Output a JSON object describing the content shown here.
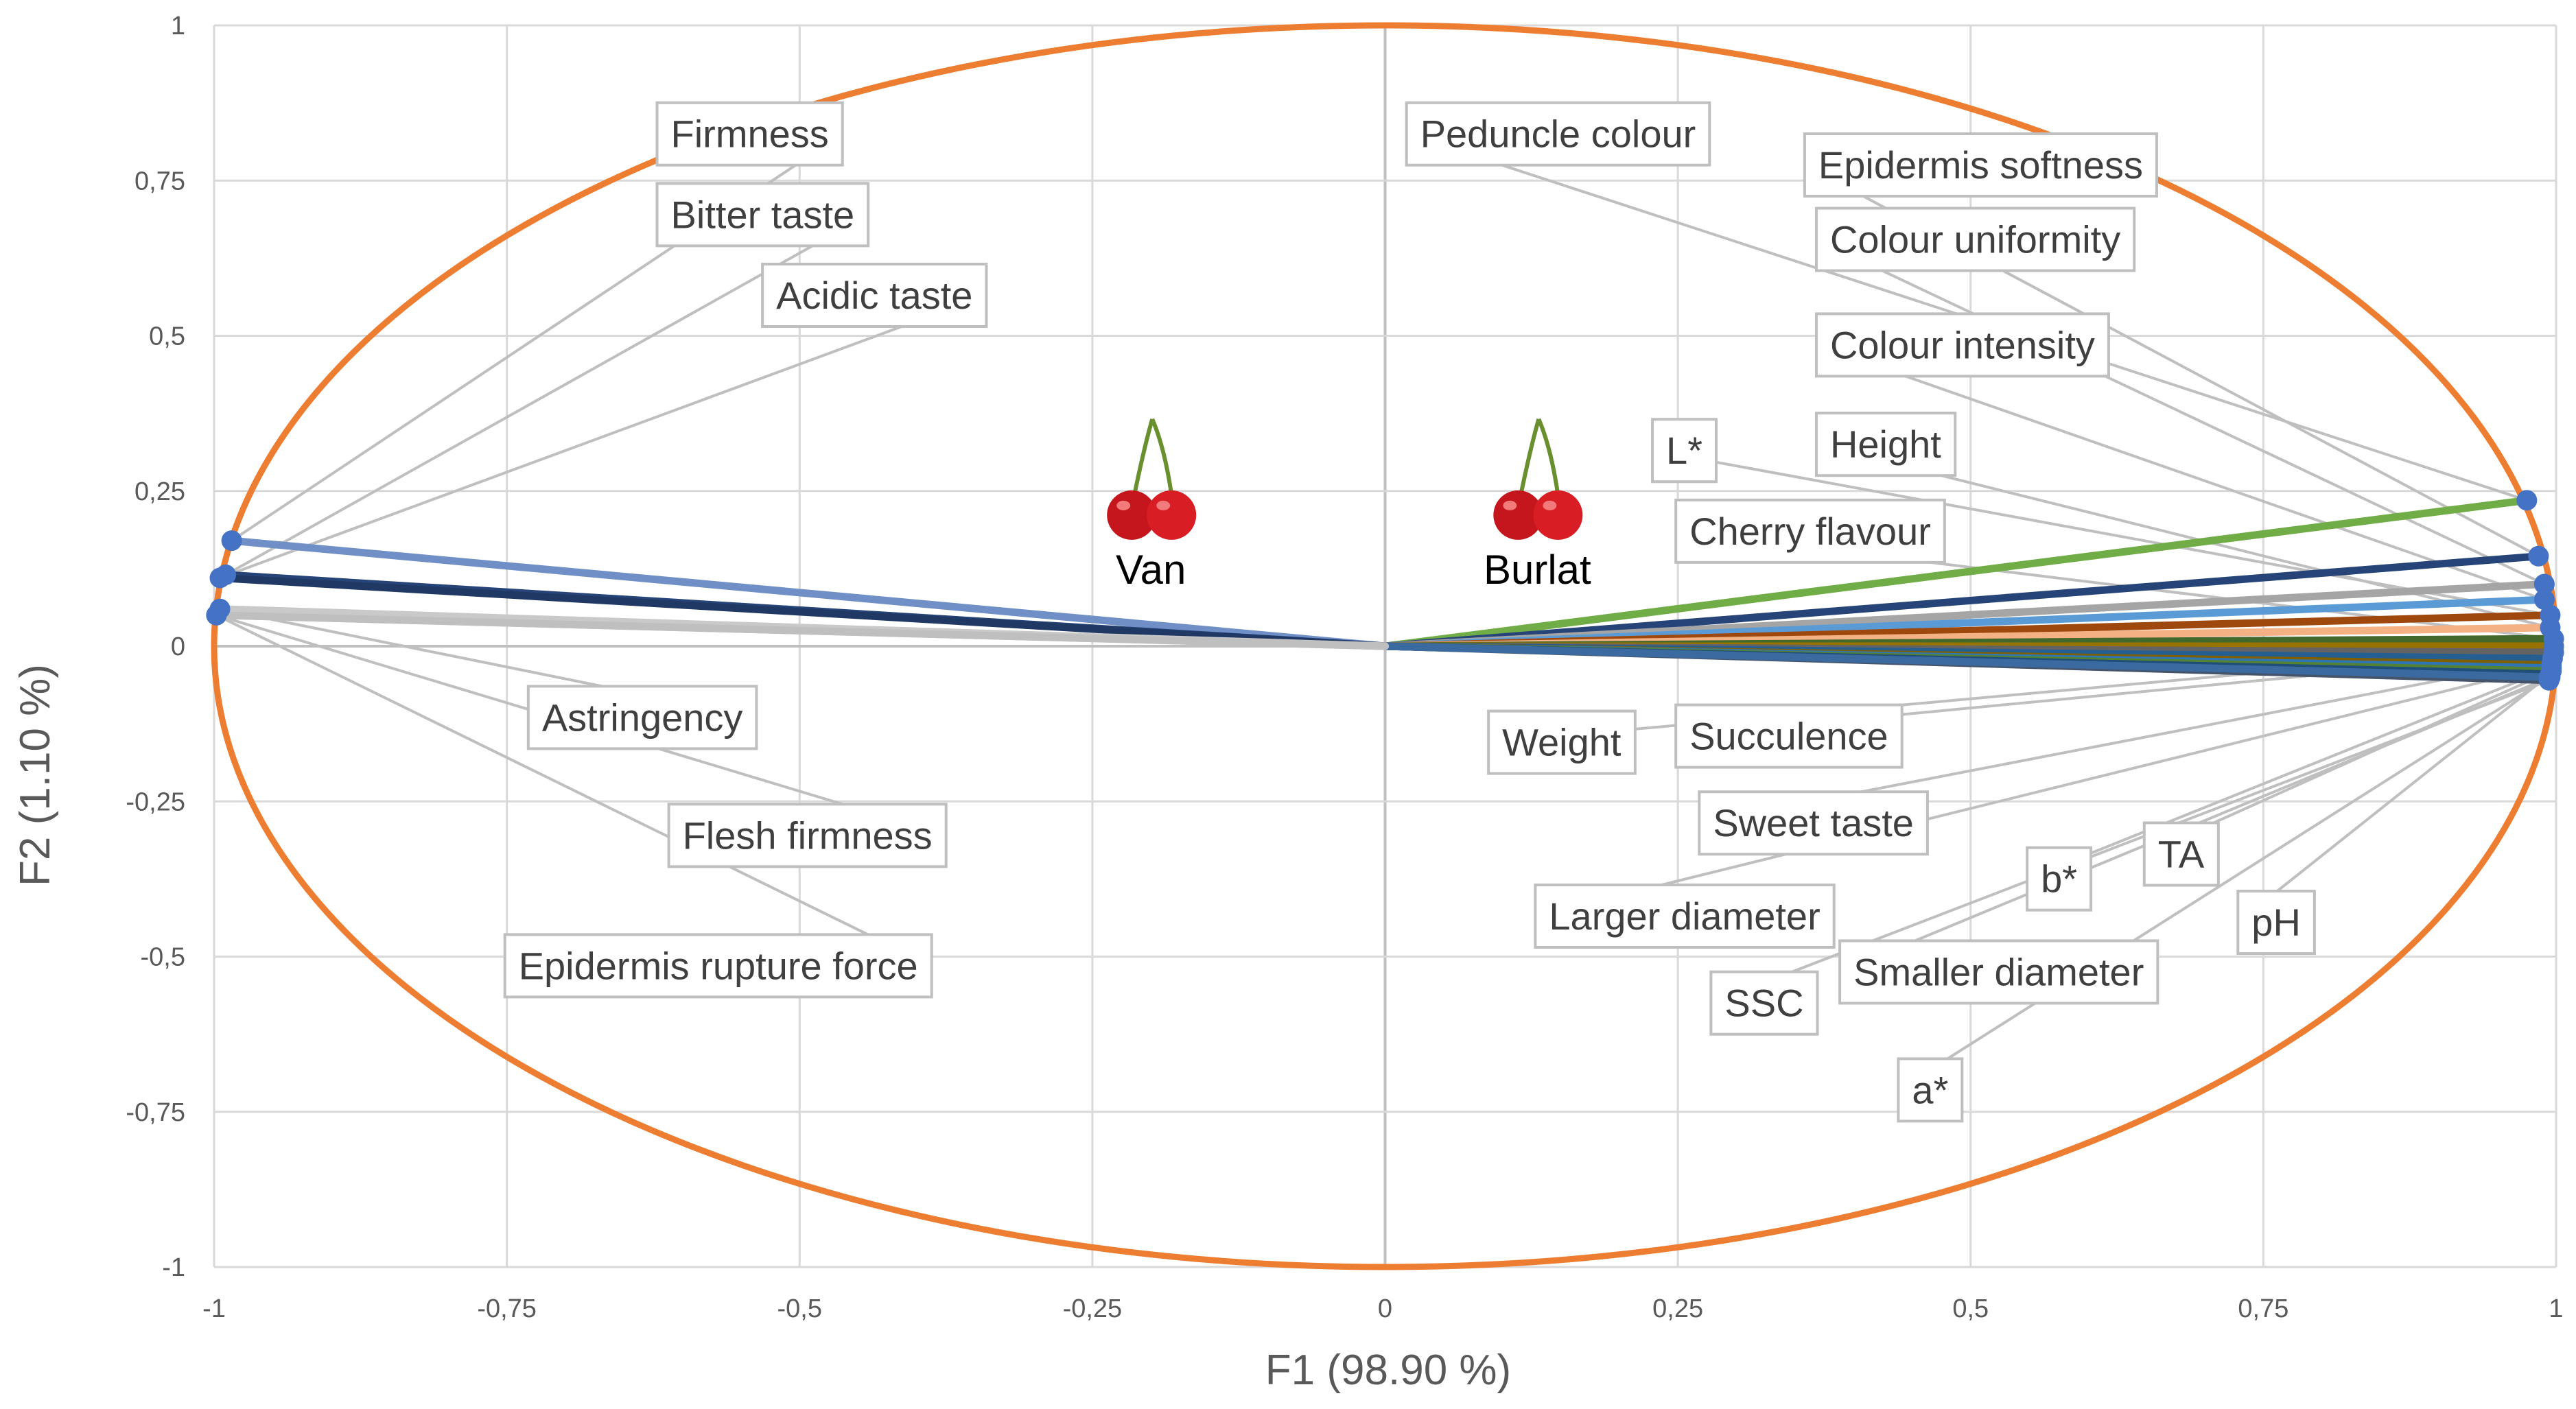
{
  "chart_data": {
    "type": "scatter",
    "subtype": "pca-correlation-circle",
    "xlabel": "F1 (98.90 %)",
    "ylabel": "F2 (1.10 %)",
    "xlim": [
      -1,
      1
    ],
    "ylim": [
      -1,
      1
    ],
    "xticks": [
      "-1",
      "-0,75",
      "-0,5",
      "-0,25",
      "0",
      "0,25",
      "0,5",
      "0,75",
      "1"
    ],
    "yticks": [
      "1",
      "0,75",
      "0,5",
      "0,25",
      "0",
      "-0,25",
      "-0,5",
      "-0,75",
      "-1"
    ],
    "grid": true,
    "circle_color": "#ed7d31",
    "observations": [
      {
        "name": "Van",
        "x": -0.2,
        "y": 0.22
      },
      {
        "name": "Burlat",
        "x": 0.13,
        "y": 0.22
      }
    ],
    "variables": [
      {
        "name": "Peduncle colour",
        "x": 0.975,
        "y": 0.235,
        "color": "#70ad47",
        "label_x": 0.03,
        "label_y": 0.82
      },
      {
        "name": "Epidermis softness",
        "x": 0.985,
        "y": 0.145,
        "color": "#264478",
        "label_x": 0.37,
        "label_y": 0.77
      },
      {
        "name": "Colour uniformity",
        "x": 0.99,
        "y": 0.1,
        "color": "#a5a5a5",
        "label_x": 0.38,
        "label_y": 0.65
      },
      {
        "name": "Colour intensity",
        "x": 0.99,
        "y": 0.075,
        "color": "#5b9bd5",
        "label_x": 0.38,
        "label_y": 0.48
      },
      {
        "name": "L*",
        "x": 0.995,
        "y": 0.05,
        "color": "#9e480e",
        "label_x": 0.24,
        "label_y": 0.31
      },
      {
        "name": "Height",
        "x": 0.995,
        "y": 0.03,
        "color": "#f4b183",
        "label_x": 0.38,
        "label_y": 0.32
      },
      {
        "name": "Cherry flavour",
        "x": 0.998,
        "y": 0.012,
        "color": "#43682b",
        "label_x": 0.26,
        "label_y": 0.18
      },
      {
        "name": "Weight",
        "x": 0.998,
        "y": 0.0,
        "color": "#997300",
        "label_x": 0.1,
        "label_y": -0.16
      },
      {
        "name": "Succulence",
        "x": 0.998,
        "y": -0.01,
        "color": "#636363",
        "label_x": 0.26,
        "label_y": -0.15
      },
      {
        "name": "Sweet taste",
        "x": 0.997,
        "y": -0.02,
        "color": "#255e91",
        "label_x": 0.28,
        "label_y": -0.29
      },
      {
        "name": "Larger diameter",
        "x": 0.996,
        "y": -0.03,
        "color": "#7f6000",
        "label_x": 0.14,
        "label_y": -0.44
      },
      {
        "name": "b*",
        "x": 0.996,
        "y": -0.035,
        "color": "#2e75b6",
        "label_x": 0.56,
        "label_y": -0.38
      },
      {
        "name": "TA",
        "x": 0.996,
        "y": -0.04,
        "color": "#548235",
        "label_x": 0.66,
        "label_y": -0.34
      },
      {
        "name": "pH",
        "x": 0.995,
        "y": -0.045,
        "color": "#1f4e79",
        "label_x": 0.74,
        "label_y": -0.45
      },
      {
        "name": "Smaller diameter",
        "x": 0.995,
        "y": -0.05,
        "color": "#2f5597",
        "label_x": 0.4,
        "label_y": -0.53
      },
      {
        "name": "SSC",
        "x": 0.994,
        "y": -0.055,
        "color": "#44546a",
        "label_x": 0.29,
        "label_y": -0.58
      },
      {
        "name": "a*",
        "x": 0.994,
        "y": -0.05,
        "color": "#3b6aa0",
        "label_x": 0.45,
        "label_y": -0.72
      },
      {
        "name": "Firmness",
        "x": -0.985,
        "y": 0.17,
        "color": "#6f8fc6",
        "label_x": -0.61,
        "label_y": 0.82
      },
      {
        "name": "Bitter taste",
        "x": -0.99,
        "y": 0.115,
        "color": "#264478",
        "label_x": -0.61,
        "label_y": 0.69
      },
      {
        "name": "Acidic taste",
        "x": -0.995,
        "y": 0.11,
        "color": "#1f3864",
        "label_x": -0.52,
        "label_y": 0.56
      },
      {
        "name": "Astringency",
        "x": -0.995,
        "y": 0.06,
        "color": "#c9c9c9",
        "label_x": -0.72,
        "label_y": -0.12
      },
      {
        "name": "Flesh firmness",
        "x": -0.998,
        "y": 0.05,
        "color": "#d0cece",
        "label_x": -0.6,
        "label_y": -0.31
      },
      {
        "name": "Epidermis rupture force",
        "x": -0.998,
        "y": 0.05,
        "color": "#bfbfbf",
        "label_x": -0.74,
        "label_y": -0.52
      }
    ]
  }
}
